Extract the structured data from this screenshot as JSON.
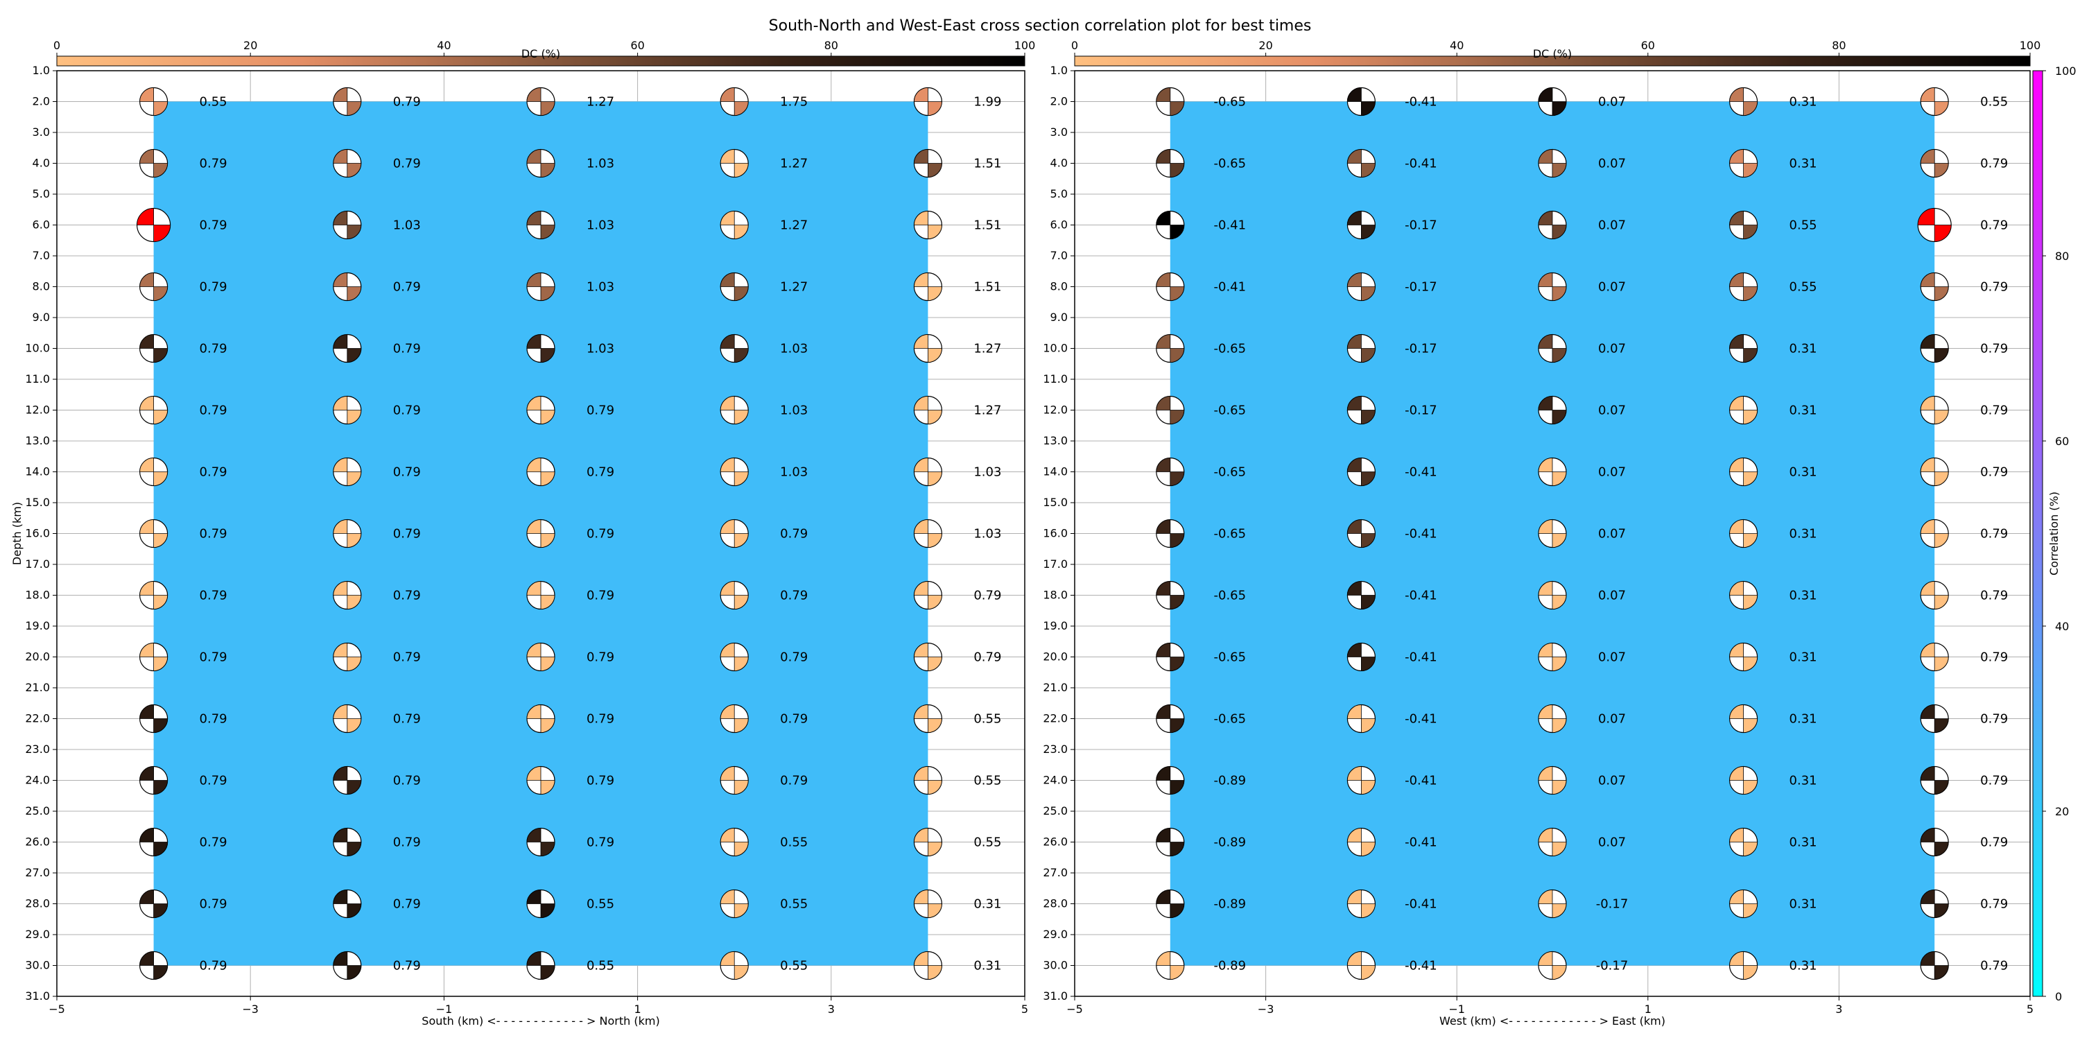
{
  "title": "South-North and West-East cross section correlation plot for best times",
  "chart_data": {
    "type": "scatter",
    "figure_title": "South-North and West-East cross section correlation plot for best times",
    "panels": [
      {
        "name": "south-north",
        "xlabel": "South (km) <- - - - - - - - - - - - > North (km)",
        "ylabel": "Depth (km)",
        "xlim": [
          -5,
          5
        ],
        "ylim": [
          31,
          1
        ],
        "xticks": [
          -5,
          -3,
          -1,
          1,
          3,
          5
        ],
        "yticks": [
          1,
          2,
          3,
          4,
          5,
          6,
          7,
          8,
          9,
          10,
          11,
          12,
          13,
          14,
          15,
          16,
          17,
          18,
          19,
          20,
          21,
          22,
          23,
          24,
          25,
          26,
          27,
          28,
          29,
          30,
          31
        ],
        "grid": true,
        "correlation_fill": {
          "x_range": [
            -4,
            4
          ],
          "depth_range": [
            2,
            30
          ],
          "color": "#40bcf9",
          "correlation_pct": 21
        },
        "x_positions": [
          -4,
          -2,
          0,
          2,
          4
        ],
        "depths": [
          2,
          4,
          6,
          8,
          10,
          12,
          14,
          16,
          18,
          20,
          22,
          24,
          26,
          28,
          30
        ],
        "values": [
          [
            0.55,
            0.79,
            1.27,
            1.75,
            1.99
          ],
          [
            0.79,
            0.79,
            1.03,
            1.27,
            1.51
          ],
          [
            0.79,
            1.03,
            1.03,
            1.27,
            1.51
          ],
          [
            0.79,
            0.79,
            1.03,
            1.27,
            1.51
          ],
          [
            0.79,
            0.79,
            1.03,
            1.03,
            1.27
          ],
          [
            0.79,
            0.79,
            0.79,
            1.03,
            1.27
          ],
          [
            0.79,
            0.79,
            0.79,
            1.03,
            1.03
          ],
          [
            0.79,
            0.79,
            0.79,
            0.79,
            1.03
          ],
          [
            0.79,
            0.79,
            0.79,
            0.79,
            0.79
          ],
          [
            0.79,
            0.79,
            0.79,
            0.79,
            0.79
          ],
          [
            0.79,
            0.79,
            0.79,
            0.79,
            0.55
          ],
          [
            0.79,
            0.79,
            0.79,
            0.79,
            0.55
          ],
          [
            0.79,
            0.79,
            0.79,
            0.55,
            0.55
          ],
          [
            0.79,
            0.79,
            0.55,
            0.55,
            0.31
          ],
          [
            0.79,
            0.79,
            0.55,
            0.55,
            0.31
          ]
        ],
        "dc_percent": [
          [
            22,
            38,
            40,
            30,
            25
          ],
          [
            42,
            38,
            44,
            0,
            55
          ],
          [
            -1,
            58,
            55,
            0,
            0
          ],
          [
            40,
            38,
            44,
            50,
            0
          ],
          [
            75,
            78,
            74,
            70,
            0
          ],
          [
            0,
            0,
            0,
            0,
            0
          ],
          [
            0,
            0,
            0,
            0,
            0
          ],
          [
            0,
            0,
            0,
            0,
            0
          ],
          [
            0,
            0,
            0,
            0,
            0
          ],
          [
            0,
            0,
            0,
            0,
            0
          ],
          [
            82,
            0,
            0,
            0,
            0
          ],
          [
            82,
            78,
            0,
            0,
            0
          ],
          [
            85,
            80,
            78,
            0,
            0
          ],
          [
            82,
            85,
            88,
            0,
            0
          ],
          [
            82,
            85,
            82,
            0,
            0
          ]
        ],
        "best_marker": {
          "x": -4,
          "depth": 6,
          "color": "#ff0000"
        }
      },
      {
        "name": "west-east",
        "xlabel": "West (km) <- - - - - - - - - - - - > East (km)",
        "ylabel": "",
        "xlim": [
          -5,
          5
        ],
        "ylim": [
          31,
          1
        ],
        "xticks": [
          -5,
          -3,
          -1,
          1,
          3,
          5
        ],
        "yticks": [
          1,
          2,
          3,
          4,
          5,
          6,
          7,
          8,
          9,
          10,
          11,
          12,
          13,
          14,
          15,
          16,
          17,
          18,
          19,
          20,
          21,
          22,
          23,
          24,
          25,
          26,
          27,
          28,
          29,
          30,
          31
        ],
        "grid": true,
        "correlation_fill": {
          "x_range": [
            -4,
            4
          ],
          "depth_range": [
            2,
            30
          ],
          "color": "#40bcf9",
          "correlation_pct": 21
        },
        "x_positions": [
          -4,
          -2,
          0,
          2,
          4
        ],
        "depths": [
          2,
          4,
          6,
          8,
          10,
          12,
          14,
          16,
          18,
          20,
          22,
          24,
          26,
          28,
          30
        ],
        "values": [
          [
            -0.65,
            -0.41,
            0.07,
            0.31,
            0.55
          ],
          [
            -0.65,
            -0.41,
            0.07,
            0.31,
            0.79
          ],
          [
            -0.41,
            -0.17,
            0.07,
            0.55,
            0.79
          ],
          [
            -0.41,
            -0.17,
            0.07,
            0.55,
            0.79
          ],
          [
            -0.65,
            -0.17,
            0.07,
            0.31,
            0.79
          ],
          [
            -0.65,
            -0.17,
            0.07,
            0.31,
            0.79
          ],
          [
            -0.65,
            -0.41,
            0.07,
            0.31,
            0.79
          ],
          [
            -0.65,
            -0.41,
            0.07,
            0.31,
            0.79
          ],
          [
            -0.65,
            -0.41,
            0.07,
            0.31,
            0.79
          ],
          [
            -0.65,
            -0.41,
            0.07,
            0.31,
            0.79
          ],
          [
            -0.65,
            -0.41,
            0.07,
            0.31,
            0.79
          ],
          [
            -0.89,
            -0.41,
            0.07,
            0.31,
            0.79
          ],
          [
            -0.89,
            -0.41,
            0.07,
            0.31,
            0.79
          ],
          [
            -0.89,
            -0.41,
            -0.17,
            0.31,
            0.79
          ],
          [
            -0.89,
            -0.41,
            -0.17,
            0.31,
            0.79
          ]
        ],
        "dc_percent": [
          [
            55,
            90,
            90,
            35,
            22
          ],
          [
            65,
            50,
            45,
            28,
            40
          ],
          [
            100,
            80,
            60,
            55,
            -1
          ],
          [
            45,
            45,
            38,
            40,
            40
          ],
          [
            50,
            58,
            60,
            70,
            80
          ],
          [
            58,
            70,
            75,
            0,
            0
          ],
          [
            70,
            70,
            0,
            0,
            0
          ],
          [
            75,
            65,
            0,
            0,
            0
          ],
          [
            75,
            80,
            0,
            0,
            0
          ],
          [
            75,
            80,
            0,
            0,
            0
          ],
          [
            80,
            0,
            0,
            0,
            80
          ],
          [
            85,
            0,
            0,
            0,
            80
          ],
          [
            85,
            0,
            0,
            0,
            80
          ],
          [
            85,
            0,
            0,
            0,
            80
          ],
          [
            0,
            0,
            0,
            0,
            80
          ]
        ],
        "best_marker": {
          "x": 4,
          "depth": 6,
          "color": "#ff0000"
        }
      }
    ],
    "dc_colorbar": {
      "label": "DC (%)",
      "ticks": [
        0,
        20,
        40,
        60,
        80,
        100
      ],
      "range": [
        0,
        100
      ],
      "colors": [
        "#ffc080",
        "#e58f66",
        "#8a5a3e",
        "#3a2418",
        "#000000"
      ]
    },
    "correlation_colorbar": {
      "label": "Correlation (%)",
      "ticks": [
        0,
        20,
        40,
        60,
        80,
        100
      ],
      "range": [
        0,
        100
      ],
      "colors": [
        "#00ffff",
        "#40bcf9",
        "#7f7ff6",
        "#bf3ffb",
        "#ff00ff"
      ]
    }
  }
}
